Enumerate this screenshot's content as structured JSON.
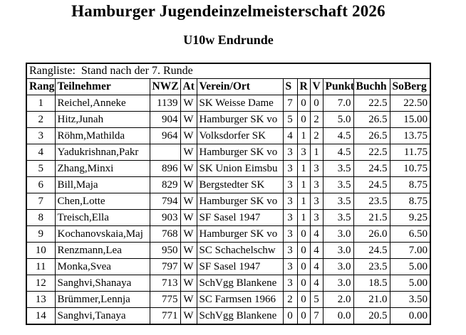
{
  "title": "Hamburger Jugendeinzelmeisterschaft 2026",
  "subtitle": "U10w Endrunde",
  "table": {
    "caption": "Rangliste:  Stand nach der 7. Runde",
    "columns": [
      "Rang",
      "Teilnehmer",
      "NWZ",
      "At",
      "Verein/Ort",
      "S",
      "R",
      "V",
      "Punkte",
      "Buchh",
      "SoBerg"
    ],
    "rows": [
      [
        "1",
        "Reichel,Anneke",
        "1139",
        "W",
        "SK Weisse Dame",
        "7",
        "0",
        "0",
        "7.0",
        "22.5",
        "22.50"
      ],
      [
        "2",
        "Hitz,Junah",
        "904",
        "W",
        "Hamburger SK vo",
        "5",
        "0",
        "2",
        "5.0",
        "26.5",
        "15.00"
      ],
      [
        "3",
        "Röhm,Mathilda",
        "964",
        "W",
        "Volksdorfer SK",
        "4",
        "1",
        "2",
        "4.5",
        "26.5",
        "13.75"
      ],
      [
        "4",
        "Yadukrishnan,Pakr",
        "",
        "W",
        "Hamburger SK vo",
        "3",
        "3",
        "1",
        "4.5",
        "22.5",
        "11.75"
      ],
      [
        "5",
        "Zhang,Minxi",
        "896",
        "W",
        "SK Union Eimsbu",
        "3",
        "1",
        "3",
        "3.5",
        "24.5",
        "10.75"
      ],
      [
        "6",
        "Bill,Maja",
        "829",
        "W",
        "Bergstedter SK",
        "3",
        "1",
        "3",
        "3.5",
        "24.5",
        "8.75"
      ],
      [
        "7",
        "Chen,Lotte",
        "794",
        "W",
        "Hamburger SK vo",
        "3",
        "1",
        "3",
        "3.5",
        "23.5",
        "8.75"
      ],
      [
        "8",
        "Treisch,Ella",
        "903",
        "W",
        "SF Sasel 1947",
        "3",
        "1",
        "3",
        "3.5",
        "21.5",
        "9.25"
      ],
      [
        "9",
        "Kochanovskaia,Maj",
        "768",
        "W",
        "Hamburger SK vo",
        "3",
        "0",
        "4",
        "3.0",
        "26.0",
        "6.50"
      ],
      [
        "10",
        "Renzmann,Lea",
        "950",
        "W",
        "SC Schachelschw",
        "3",
        "0",
        "4",
        "3.0",
        "24.5",
        "7.00"
      ],
      [
        "11",
        "Monka,Svea",
        "797",
        "W",
        "SF Sasel 1947",
        "3",
        "0",
        "4",
        "3.0",
        "23.5",
        "5.00"
      ],
      [
        "12",
        "Sanghvi,Shanaya",
        "713",
        "W",
        "SchVgg Blankene",
        "3",
        "0",
        "4",
        "3.0",
        "18.5",
        "5.00"
      ],
      [
        "13",
        "Brümmer,Lennja",
        "775",
        "W",
        "SC Farmsen 1966",
        "2",
        "0",
        "5",
        "2.0",
        "21.0",
        "3.50"
      ],
      [
        "14",
        "Sanghvi,Tanaya",
        "771",
        "W",
        "SchVgg Blankene",
        "0",
        "0",
        "7",
        "0.0",
        "20.5",
        "0.00"
      ]
    ]
  }
}
